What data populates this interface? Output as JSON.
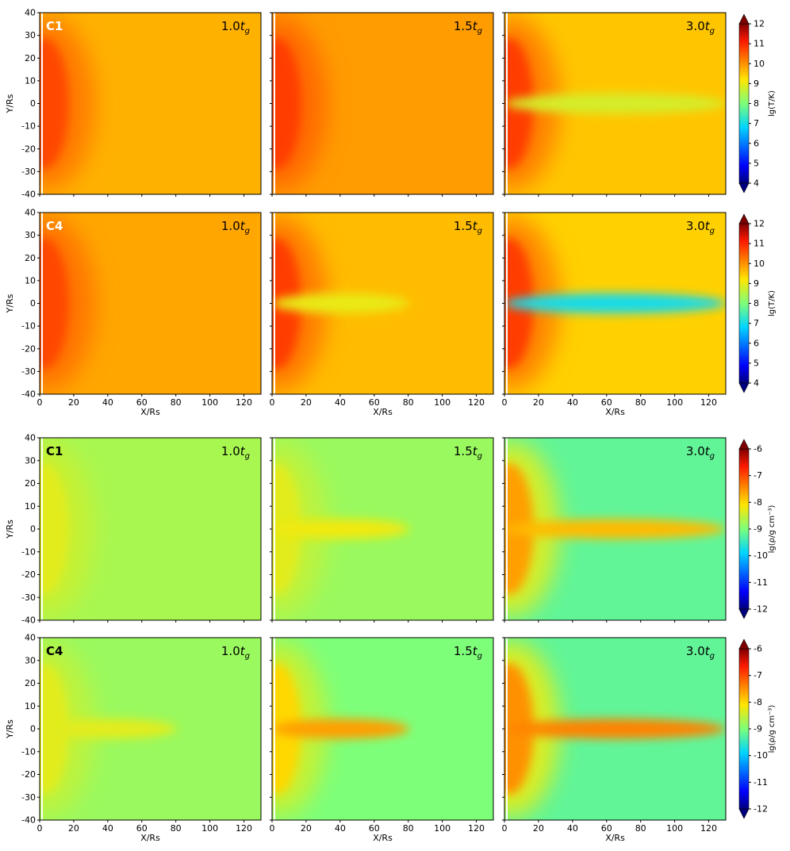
{
  "chart_data": [
    {
      "type": "heatmap",
      "quantity": "temperature",
      "cbar_label": "lg(T/K)",
      "cbar_ticks": [
        "4",
        "5",
        "6",
        "7",
        "8",
        "9",
        "10",
        "11",
        "12"
      ],
      "cbar_range": [
        4,
        12
      ],
      "xlabel": "X/Rs",
      "ylabel": "Y/Rs",
      "xlim": [
        0,
        130
      ],
      "ylim": [
        -40,
        40
      ],
      "xticks": [
        "0",
        "20",
        "40",
        "60",
        "80",
        "100",
        "120"
      ],
      "yticks": [
        "40",
        "30",
        "20",
        "10",
        "0",
        "-10",
        "-20",
        "-30",
        "-40"
      ],
      "rows": [
        {
          "case": "C1",
          "panels": [
            {
              "time": "1.0",
              "background": 9.7,
              "core": 10.7,
              "jet": null
            },
            {
              "time": "1.5",
              "background": 9.9,
              "core": 10.8,
              "jet": null
            },
            {
              "time": "3.0",
              "background": 9.5,
              "core": 10.8,
              "jet": 8.8
            }
          ]
        },
        {
          "case": "C4",
          "panels": [
            {
              "time": "1.0",
              "background": 9.8,
              "core": 10.7,
              "jet": null
            },
            {
              "time": "1.5",
              "background": 9.6,
              "core": 10.8,
              "jet": 9.0
            },
            {
              "time": "3.0",
              "background": 9.4,
              "core": 10.8,
              "jet": 7.0
            }
          ]
        }
      ]
    },
    {
      "type": "heatmap",
      "quantity": "density",
      "cbar_label": "lg(ρ/g cm⁻³)",
      "cbar_ticks": [
        "-6",
        "-7",
        "-8",
        "-9",
        "-10",
        "-11",
        "-12"
      ],
      "cbar_range": [
        -12,
        -6
      ],
      "xlabel": "X/Rs",
      "ylabel": "Y/Rs",
      "xlim": [
        0,
        130
      ],
      "ylim": [
        -40,
        40
      ],
      "xticks": [
        "0",
        "20",
        "40",
        "60",
        "80",
        "100",
        "120"
      ],
      "yticks": [
        "40",
        "30",
        "20",
        "10",
        "0",
        "-10",
        "-20",
        "-30",
        "-40"
      ],
      "rows": [
        {
          "case": "C1",
          "panels": [
            {
              "time": "1.0",
              "background": -8.7,
              "core": -8.3,
              "jet": null
            },
            {
              "time": "1.5",
              "background": -8.8,
              "core": -8.3,
              "jet": -8.2
            },
            {
              "time": "3.0",
              "background": -9.2,
              "core": -7.6,
              "jet": -7.8
            }
          ]
        },
        {
          "case": "C4",
          "panels": [
            {
              "time": "1.0",
              "background": -8.8,
              "core": -8.3,
              "jet": -8.3
            },
            {
              "time": "1.5",
              "background": -9.0,
              "core": -8.0,
              "jet": -7.6
            },
            {
              "time": "3.0",
              "background": -9.2,
              "core": -7.5,
              "jet": -7.4
            }
          ]
        }
      ]
    }
  ],
  "time_unit": "t",
  "time_subscript": "g"
}
